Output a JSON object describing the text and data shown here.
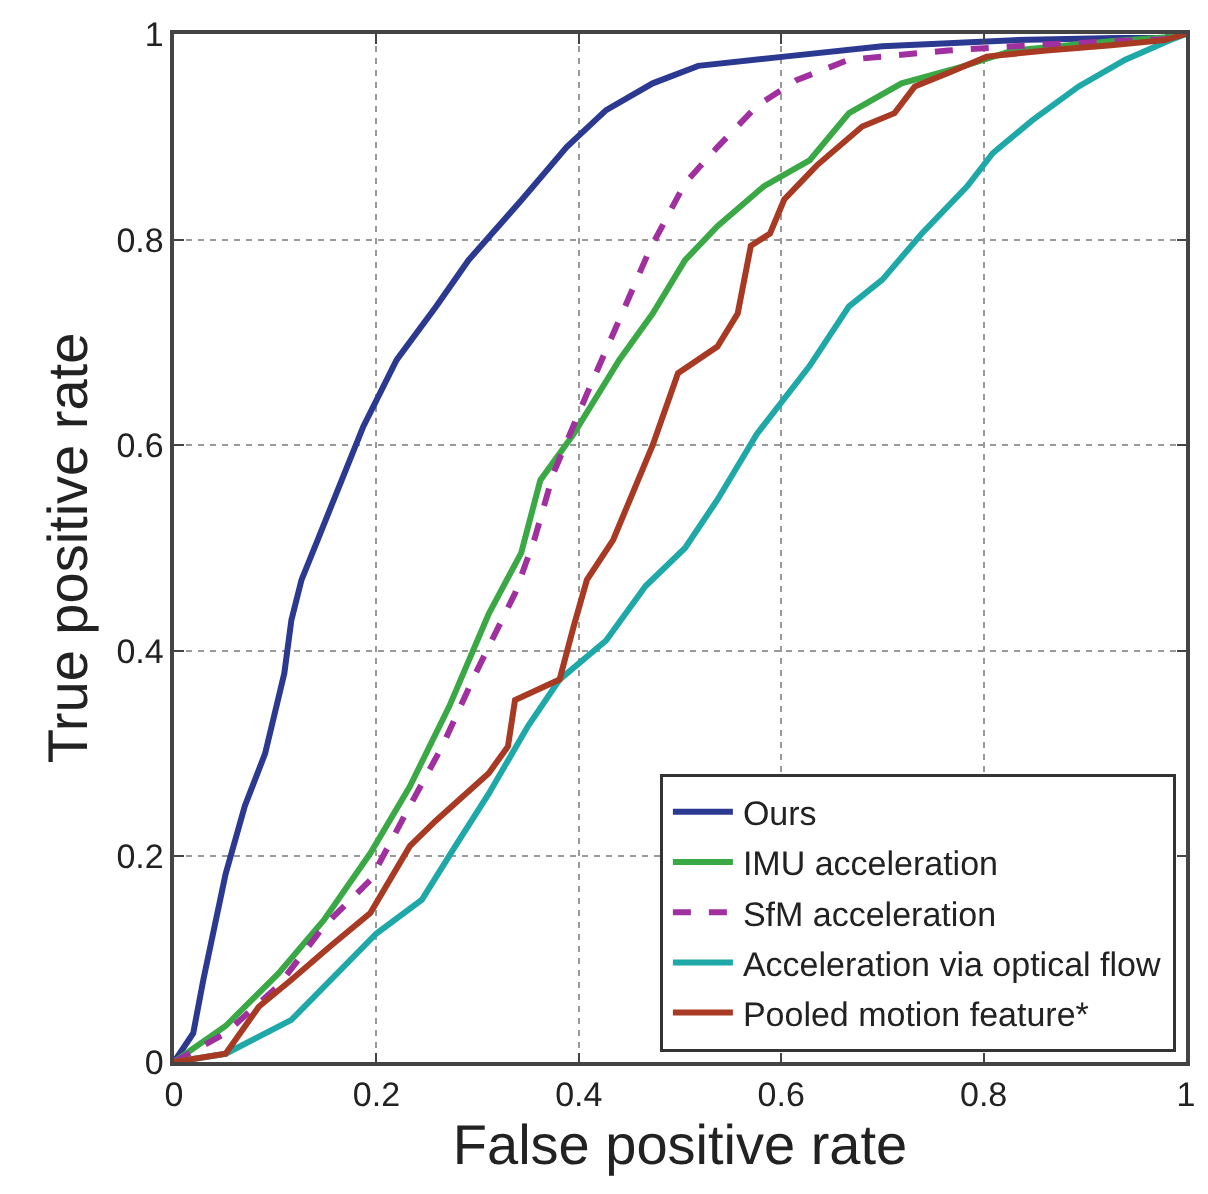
{
  "chart_data": {
    "type": "line",
    "xlabel": "False positive rate",
    "ylabel": "True positive rate",
    "xlim": [
      0,
      1
    ],
    "ylim": [
      0,
      1
    ],
    "xticks": [
      0,
      0.2,
      0.4,
      0.6,
      0.8,
      1
    ],
    "yticks": [
      0,
      0.2,
      0.4,
      0.6,
      0.8,
      1
    ],
    "grid": true,
    "legend": "bottom right",
    "marker": "none",
    "series": [
      {
        "name": "Ours",
        "color": "#2b3990",
        "line_style": "solid",
        "x": [
          0,
          0.019,
          0.029,
          0.051,
          0.07,
          0.09,
          0.109,
          0.116,
          0.126,
          0.142,
          0.187,
          0.22,
          0.259,
          0.291,
          0.343,
          0.388,
          0.427,
          0.473,
          0.518,
          0.603,
          0.7,
          0.83,
          0.98,
          1
        ],
        "values": [
          0,
          0.028,
          0.08,
          0.183,
          0.249,
          0.3,
          0.378,
          0.43,
          0.469,
          0.508,
          0.618,
          0.683,
          0.735,
          0.78,
          0.838,
          0.89,
          0.926,
          0.952,
          0.969,
          0.978,
          0.988,
          0.994,
          0.997,
          1
        ]
      },
      {
        "name": "IMU acceleration",
        "color": "#3aa845",
        "line_style": "solid",
        "x": [
          0,
          0.051,
          0.103,
          0.148,
          0.194,
          0.233,
          0.272,
          0.311,
          0.343,
          0.362,
          0.395,
          0.44,
          0.473,
          0.505,
          0.537,
          0.583,
          0.628,
          0.667,
          0.719,
          0.778,
          0.829,
          0.926,
          0.985,
          1
        ],
        "values": [
          0,
          0.035,
          0.086,
          0.138,
          0.203,
          0.268,
          0.346,
          0.436,
          0.495,
          0.566,
          0.611,
          0.683,
          0.728,
          0.78,
          0.813,
          0.852,
          0.877,
          0.923,
          0.952,
          0.968,
          0.984,
          0.993,
          0.997,
          1
        ]
      },
      {
        "name": "SfM acceleration",
        "color": "#a0309f",
        "line_style": "dashed",
        "x": [
          0,
          0.051,
          0.103,
          0.148,
          0.194,
          0.233,
          0.265,
          0.298,
          0.337,
          0.356,
          0.375,
          0.408,
          0.44,
          0.47,
          0.505,
          0.537,
          0.576,
          0.615,
          0.667,
          0.765,
          0.862,
          0.979,
          1
        ],
        "values": [
          0,
          0.028,
          0.074,
          0.132,
          0.177,
          0.249,
          0.307,
          0.378,
          0.456,
          0.508,
          0.573,
          0.65,
          0.722,
          0.79,
          0.855,
          0.89,
          0.93,
          0.955,
          0.975,
          0.984,
          0.99,
          0.995,
          1
        ]
      },
      {
        "name": "Acceleration via optical flow",
        "color": "#1fa8a8",
        "line_style": "solid",
        "x": [
          0,
          0.051,
          0.116,
          0.161,
          0.2,
          0.245,
          0.278,
          0.311,
          0.35,
          0.381,
          0.427,
          0.466,
          0.505,
          0.537,
          0.576,
          0.628,
          0.667,
          0.7,
          0.739,
          0.784,
          0.809,
          0.848,
          0.894,
          0.94,
          0.984,
          1
        ],
        "values": [
          0,
          0.008,
          0.041,
          0.086,
          0.125,
          0.158,
          0.21,
          0.261,
          0.327,
          0.372,
          0.41,
          0.463,
          0.5,
          0.547,
          0.611,
          0.677,
          0.735,
          0.761,
          0.806,
          0.852,
          0.884,
          0.916,
          0.949,
          0.975,
          0.994,
          1
        ]
      },
      {
        "name": "Pooled motion feature*",
        "color": "#a83a23",
        "line_style": "solid",
        "x": [
          0,
          0.051,
          0.084,
          0.116,
          0.155,
          0.194,
          0.233,
          0.259,
          0.311,
          0.33,
          0.337,
          0.381,
          0.395,
          0.408,
          0.434,
          0.473,
          0.498,
          0.537,
          0.557,
          0.57,
          0.589,
          0.603,
          0.635,
          0.68,
          0.712,
          0.732,
          0.765,
          0.803,
          0.862,
          0.926,
          0.979,
          1
        ],
        "values": [
          0,
          0.008,
          0.054,
          0.08,
          0.113,
          0.145,
          0.21,
          0.235,
          0.281,
          0.307,
          0.352,
          0.372,
          0.424,
          0.469,
          0.508,
          0.6,
          0.67,
          0.696,
          0.728,
          0.794,
          0.806,
          0.839,
          0.872,
          0.91,
          0.923,
          0.949,
          0.962,
          0.978,
          0.984,
          0.989,
          0.994,
          1
        ]
      }
    ]
  }
}
